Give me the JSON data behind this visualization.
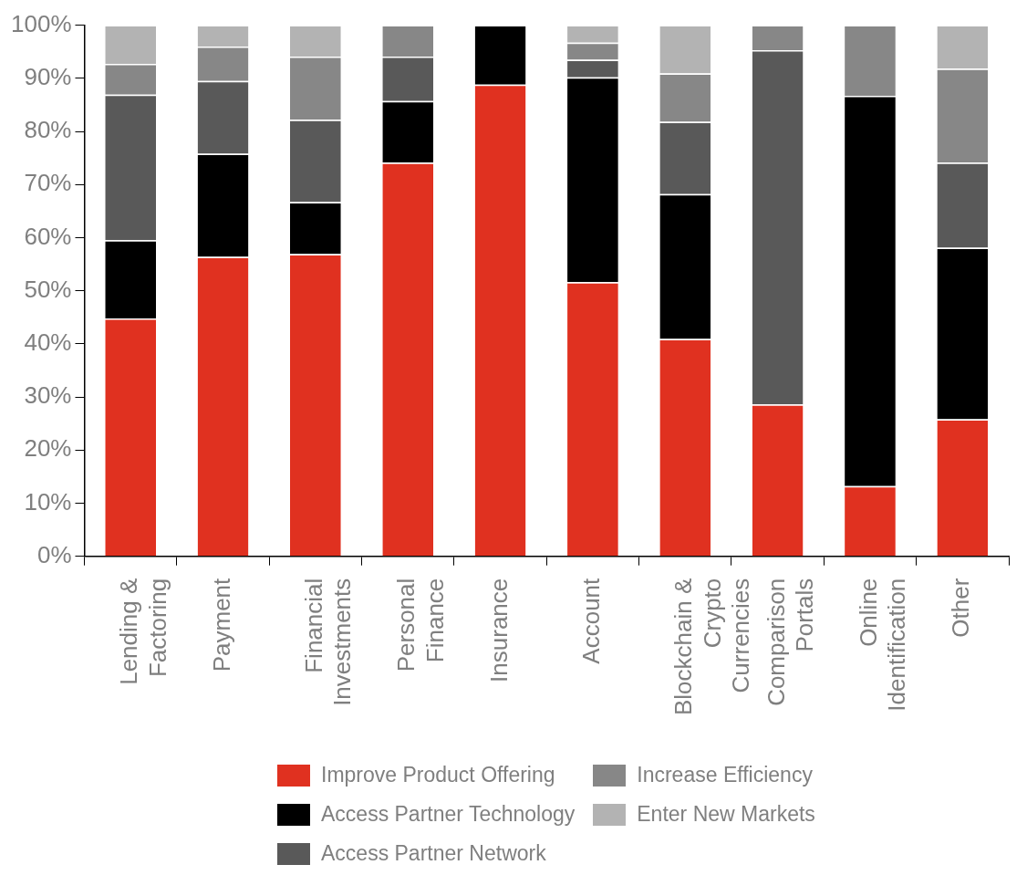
{
  "chart_data": {
    "type": "bar",
    "stacked": true,
    "categories": [
      "Lending & Factoring",
      "Payment",
      "Financial Investments",
      "Personal Finance",
      "Insurance",
      "Account",
      "Blockchain & Crypto Currencies",
      "Comparison Portals",
      "Online Identification",
      "Other"
    ],
    "series": [
      {
        "name": "Improve Product Offering",
        "color": "#e03120",
        "values": [
          44.8,
          56.4,
          56.9,
          74.1,
          88.8,
          51.6,
          40.9,
          28.6,
          13.2,
          25.8
        ]
      },
      {
        "name": "Access Partner Technology",
        "color": "#000000",
        "values": [
          14.7,
          19.4,
          9.8,
          11.6,
          11.2,
          38.6,
          27.3,
          0,
          73.5,
          32.3
        ]
      },
      {
        "name": "Access Partner Network",
        "color": "#595959",
        "values": [
          27.4,
          13.7,
          15.5,
          8.4,
          0,
          3.3,
          13.6,
          66.7,
          0,
          16.0
        ]
      },
      {
        "name": "Increase Efficiency",
        "color": "#878787",
        "values": [
          5.8,
          6.5,
          11.9,
          5.9,
          0,
          3.2,
          9.1,
          4.7,
          13.3,
          17.7
        ]
      },
      {
        "name": "Enter New Markets",
        "color": "#b3b3b3",
        "values": [
          7.3,
          4.0,
          5.9,
          0,
          0,
          3.3,
          9.1,
          0,
          0,
          8.2
        ]
      }
    ],
    "ylim": [
      0,
      100
    ],
    "yticks": [
      {
        "value": 0,
        "label": "0%"
      },
      {
        "value": 10,
        "label": "10%"
      },
      {
        "value": 20,
        "label": "20%"
      },
      {
        "value": 30,
        "label": "30%"
      },
      {
        "value": 40,
        "label": "40%"
      },
      {
        "value": 50,
        "label": "50%"
      },
      {
        "value": 60,
        "label": "60%"
      },
      {
        "value": 70,
        "label": "70%"
      },
      {
        "value": 80,
        "label": "80%"
      },
      {
        "value": 90,
        "label": "90%"
      },
      {
        "value": 100,
        "label": "100%"
      }
    ],
    "grid": false,
    "legend": "bottom"
  }
}
